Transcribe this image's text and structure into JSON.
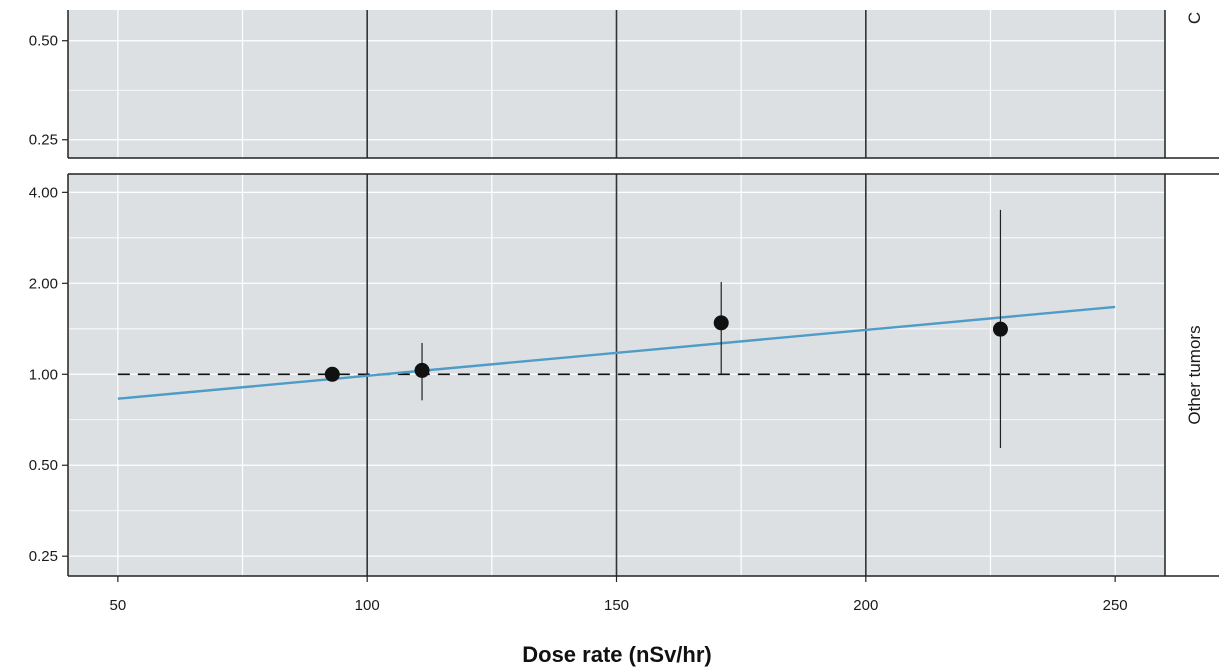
{
  "chart_data": {
    "type": "scatter",
    "xlabel": "Dose rate (nSv/hr)",
    "xlim": [
      40,
      260
    ],
    "x_ticks": [
      50,
      100,
      150,
      200,
      250
    ],
    "panels": [
      {
        "strip_label": "C",
        "y_scale": "log2",
        "y_ticks": [
          0.25,
          0.5
        ],
        "y_tick_labels": [
          "0.25",
          "0.50"
        ],
        "visible_range_note": "",
        "ylim": [
          0.22,
          0.62
        ],
        "points": [],
        "fit_line": null,
        "reference_line": null
      },
      {
        "strip_label": "Other tumors",
        "y_scale": "log2",
        "y_ticks": [
          0.25,
          0.5,
          1,
          2,
          4
        ],
        "y_tick_labels": [
          "0.25",
          "0.50",
          "1.00",
          "2.00",
          "4.00"
        ],
        "ylim": [
          0.215,
          4.6
        ],
        "points": [
          {
            "x": 93,
            "y": 1.0
          },
          {
            "x": 111,
            "y": 1.03,
            "lower": 0.82,
            "upper": 1.27
          },
          {
            "x": 171,
            "y": 1.48,
            "lower": 1.0,
            "upper": 2.02
          },
          {
            "x": 227,
            "y": 1.41,
            "lower": 0.57,
            "upper": 3.5
          }
        ],
        "fit_line": {
          "x": [
            50,
            250
          ],
          "y": [
            0.83,
            1.67
          ],
          "color": "#4e9cc7"
        },
        "reference_line": {
          "y": 1.0,
          "style": "dashed"
        }
      }
    ],
    "grid": true,
    "colors": {
      "panel_background": "#dde0e2",
      "grid": "#ffffff",
      "major_vertical": "#333333",
      "point": "#111111",
      "fit_line": "#4e9cc7"
    }
  }
}
